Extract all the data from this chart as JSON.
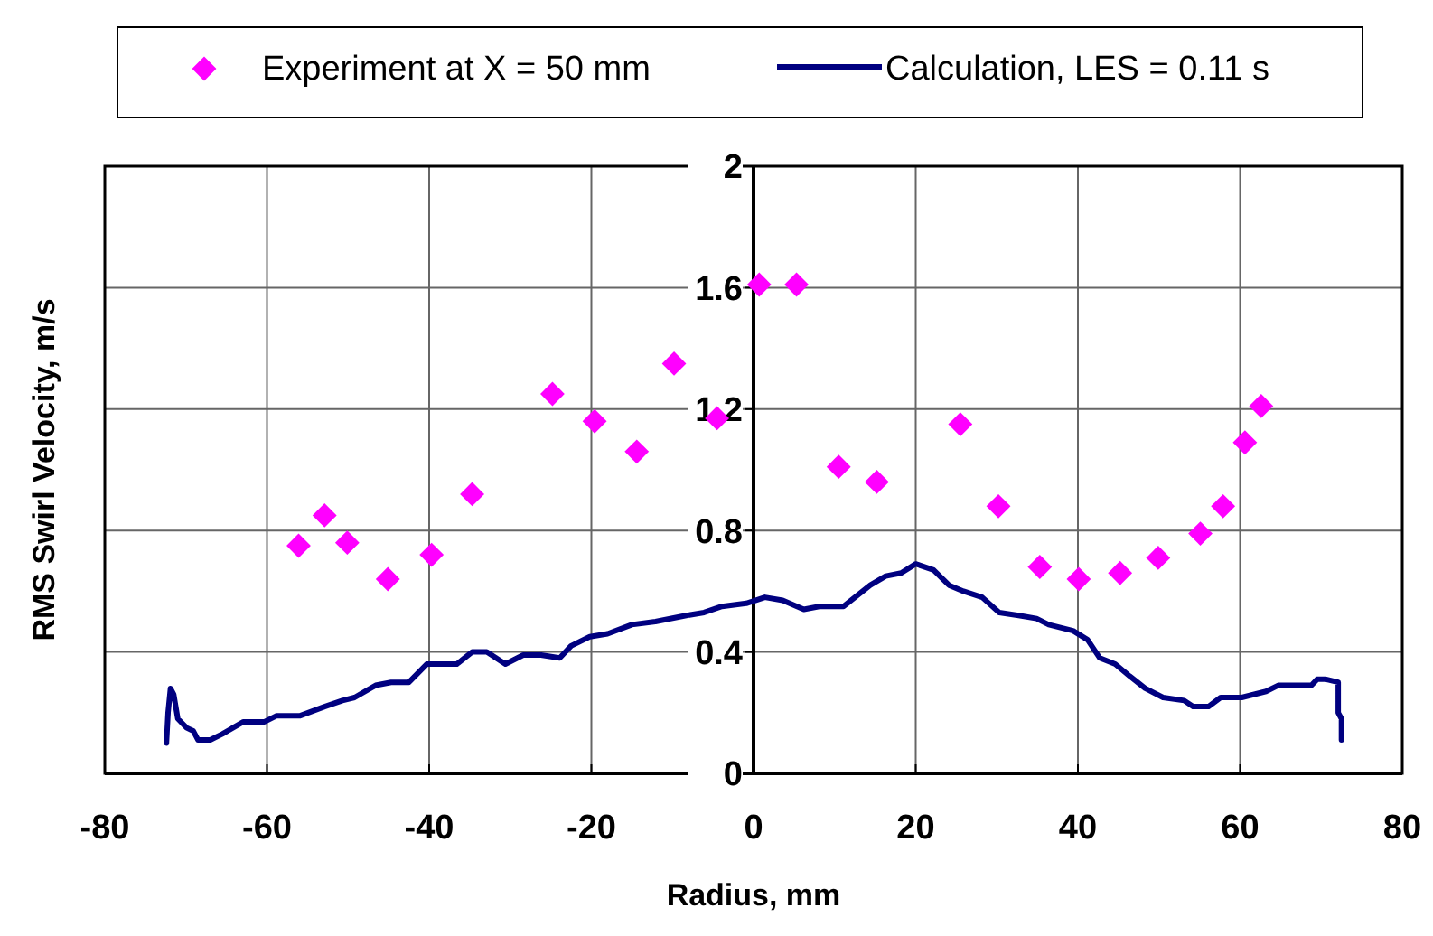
{
  "chart_data": {
    "type": "scatter",
    "xlabel": "Radius, mm",
    "ylabel": "RMS Swirl Velocity, m/s",
    "xlim": [
      -80,
      80
    ],
    "xticks": [
      -80,
      -60,
      -40,
      -20,
      0,
      20,
      40,
      60,
      80
    ],
    "ylim": [
      0,
      2
    ],
    "yticks": [
      0,
      0.4,
      0.8,
      1.2,
      1.6,
      2
    ],
    "grid": true,
    "legend": "top",
    "series": [
      {
        "name": "Experiment at X = 50 mm",
        "marker": "diamond",
        "color": "#ff00ff",
        "x": [
          -56.1,
          -52.9,
          -50.1,
          -45.1,
          -39.7,
          -34.7,
          -24.8,
          -19.6,
          -14.4,
          -9.8,
          -4.5,
          0.7,
          5.3,
          10.5,
          15.2,
          25.5,
          30.2,
          35.3,
          40.1,
          45.2,
          49.9,
          55.1,
          57.9,
          60.6,
          62.6
        ],
        "values": [
          0.75,
          0.85,
          0.76,
          0.64,
          0.72,
          0.92,
          1.25,
          1.16,
          1.06,
          1.35,
          1.17,
          1.61,
          1.61,
          1.01,
          0.96,
          1.15,
          0.88,
          0.68,
          0.64,
          0.66,
          0.71,
          0.79,
          0.88,
          1.09,
          1.21
        ]
      },
      {
        "name": "Calculation, LES = 0.11 s",
        "type": "line",
        "marker": "none",
        "line_style": "solid",
        "color": "#000080",
        "x": [
          -72.4,
          -72.2,
          -71.9,
          -71.5,
          -71.0,
          -69.9,
          -69.1,
          -68.5,
          -67.0,
          -65.5,
          -62.9,
          -60.3,
          -58.8,
          -55.9,
          -52.9,
          -50.7,
          -49.2,
          -46.6,
          -44.7,
          -42.5,
          -40.3,
          -36.6,
          -34.7,
          -32.9,
          -30.6,
          -28.4,
          -26.2,
          -23.9,
          -22.5,
          -20.2,
          -18.0,
          -15.0,
          -12.1,
          -8.3,
          -6.1,
          -3.9,
          -0.9,
          1.4,
          3.6,
          6.2,
          8.1,
          11.1,
          14.4,
          16.3,
          18.2,
          20.0,
          22.2,
          24.1,
          25.9,
          28.2,
          30.3,
          32.7,
          34.9,
          36.4,
          39.4,
          41.2,
          42.7,
          44.6,
          46.4,
          48.3,
          50.5,
          53.1,
          54.2,
          56.1,
          57.6,
          60.2,
          63.2,
          64.7,
          68.8,
          69.5,
          70.6,
          72.1,
          72.1,
          72.5,
          72.5
        ],
        "values": [
          0.1,
          0.2,
          0.28,
          0.26,
          0.18,
          0.15,
          0.14,
          0.11,
          0.11,
          0.13,
          0.17,
          0.17,
          0.19,
          0.19,
          0.22,
          0.24,
          0.25,
          0.29,
          0.3,
          0.3,
          0.36,
          0.36,
          0.4,
          0.4,
          0.36,
          0.39,
          0.39,
          0.38,
          0.42,
          0.45,
          0.46,
          0.49,
          0.5,
          0.52,
          0.53,
          0.55,
          0.56,
          0.58,
          0.57,
          0.54,
          0.55,
          0.55,
          0.62,
          0.65,
          0.66,
          0.69,
          0.67,
          0.62,
          0.6,
          0.58,
          0.53,
          0.52,
          0.51,
          0.49,
          0.47,
          0.44,
          0.38,
          0.36,
          0.32,
          0.28,
          0.25,
          0.24,
          0.22,
          0.22,
          0.25,
          0.25,
          0.27,
          0.29,
          0.29,
          0.31,
          0.31,
          0.3,
          0.2,
          0.18,
          0.11
        ]
      }
    ]
  }
}
